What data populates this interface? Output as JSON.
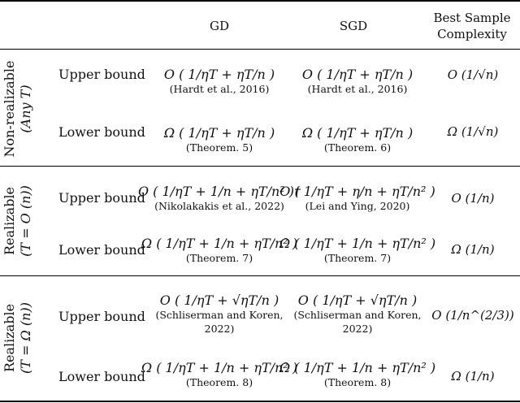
{
  "headers": {
    "col_gd": "GD",
    "col_sgd": "SGD",
    "col_best_line1": "Best Sample",
    "col_best_line2": "Complexity"
  },
  "groups": [
    {
      "label_line1": "Non-realizable",
      "label_line2": "(Any T)",
      "rows": [
        {
          "label": "Upper bound",
          "gd_expr": "O ( 1/ηT + ηT/n )",
          "gd_cite": "(Hardt et al., 2016)",
          "sgd_expr": "O ( 1/ηT + ηT/n )",
          "sgd_cite": "(Hardt et al., 2016)",
          "best": "O (1/√n)"
        },
        {
          "label": "Lower bound",
          "gd_expr": "Ω ( 1/ηT + ηT/n )",
          "gd_cite": "(Theorem. 5)",
          "sgd_expr": "Ω ( 1/ηT + ηT/n )",
          "sgd_cite": "(Theorem. 6)",
          "best": "Ω (1/√n)"
        }
      ]
    },
    {
      "label_line1": "Realizable",
      "label_line2": "(T = O (n))",
      "rows": [
        {
          "label": "Upper bound",
          "gd_expr": "O ( 1/ηT + 1/n + ηT/n² )†",
          "gd_cite": "(Nikolakakis et al., 2022)",
          "sgd_expr": "O ( 1/ηT + η/n + ηT/n² )",
          "sgd_cite": "(Lei and Ying, 2020)",
          "best": "O (1/n)"
        },
        {
          "label": "Lower bound",
          "gd_expr": "Ω ( 1/ηT + 1/n + ηT/n² )",
          "gd_cite": "(Theorem. 7)",
          "sgd_expr": "Ω ( 1/ηT + 1/n + ηT/n² )",
          "sgd_cite": "(Theorem. 7)",
          "best": "Ω (1/n)"
        }
      ]
    },
    {
      "label_line1": "Realizable",
      "label_line2": "(T = Ω (n))",
      "rows": [
        {
          "label": "Upper bound",
          "gd_expr": "O ( 1/ηT + √ηT/n )",
          "gd_cite": "(Schliserman and Koren,",
          "gd_cite2": "2022)",
          "sgd_expr": "O ( 1/ηT + √ηT/n )",
          "sgd_cite": "(Schliserman and Koren,",
          "sgd_cite2": "2022)",
          "best": "O (1/n^(2/3))"
        },
        {
          "label": "Lower bound",
          "gd_expr": "Ω ( 1/ηT + 1/n + ηT/n² )",
          "gd_cite": "(Theorem. 8)",
          "sgd_expr": "Ω ( 1/ηT + 1/n + ηT/n² )",
          "sgd_cite": "(Theorem. 8)",
          "best": "Ω (1/n)"
        }
      ]
    }
  ]
}
